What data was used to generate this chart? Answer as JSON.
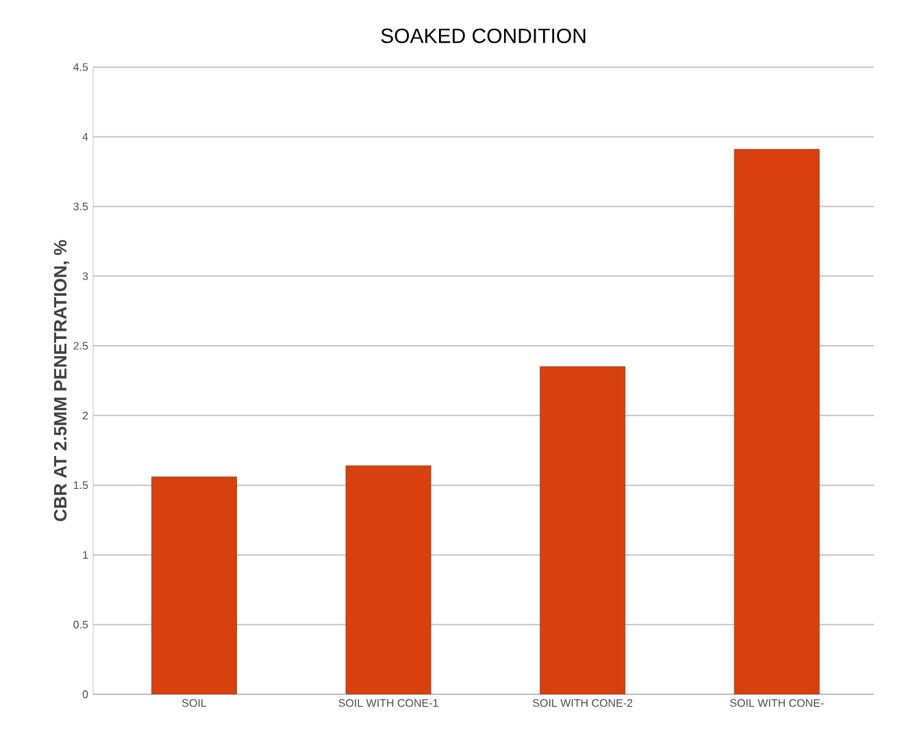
{
  "chart_data": {
    "type": "bar",
    "title": "SOAKED CONDITION",
    "ylabel": "CBR  AT 2.5MM PENETRATION, %",
    "categories": [
      "SOIL",
      "SOIL WITH CONE-1",
      "SOIL WITH CONE-2",
      "SOIL WITH CONE-"
    ],
    "values": [
      1.56,
      1.64,
      2.35,
      3.91
    ],
    "color": "#d9400f",
    "ylim": [
      0,
      4.5
    ],
    "yticks": [
      0,
      0.5,
      1,
      1.5,
      2,
      2.5,
      3,
      3.5,
      4,
      4.5
    ],
    "grid": "y"
  }
}
